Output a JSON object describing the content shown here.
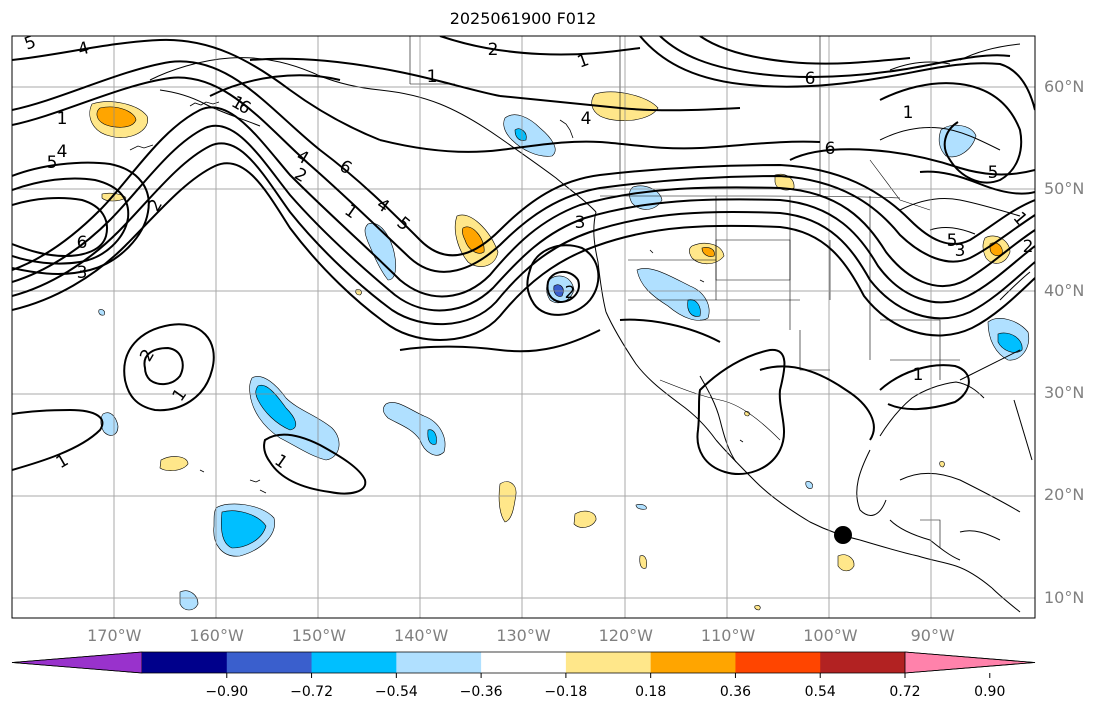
{
  "title": "2025061900 F012",
  "map": {
    "lat_ticks": [
      {
        "label": "60°N",
        "lat": 60
      },
      {
        "label": "50°N",
        "lat": 50
      },
      {
        "label": "40°N",
        "lat": 40
      },
      {
        "label": "30°N",
        "lat": 30
      },
      {
        "label": "20°N",
        "lat": 20
      },
      {
        "label": "10°N",
        "lat": 10
      }
    ],
    "lon_ticks": [
      {
        "label": "170°W",
        "lon": -170
      },
      {
        "label": "160°W",
        "lon": -160
      },
      {
        "label": "150°W",
        "lon": -150
      },
      {
        "label": "140°W",
        "lon": -140
      },
      {
        "label": "130°W",
        "lon": -130
      },
      {
        "label": "120°W",
        "lon": -120
      },
      {
        "label": "110°W",
        "lon": -110
      },
      {
        "label": "100°W",
        "lon": -100
      },
      {
        "label": "90°W",
        "lon": -90
      }
    ],
    "marker": {
      "name": "black dot",
      "lon": -98.5,
      "lat": 16.5
    },
    "contour_labels": [
      "5",
      "4",
      "2",
      "1",
      "6",
      "1",
      "4",
      "1",
      "5",
      "4",
      "6",
      "4",
      "6",
      "3",
      "2",
      "1",
      "2",
      "3",
      "1",
      "1",
      "5",
      "1",
      "2",
      "2",
      "6",
      "1",
      "4",
      "5",
      "1",
      "1",
      "1",
      "2",
      "3",
      "5",
      "6"
    ]
  },
  "colorbar": {
    "colors": [
      "#9932cc",
      "#00008b",
      "#3a5fcd",
      "#00bfff",
      "#b0e0ff",
      "#ffffff",
      "#ffe78a",
      "#ffa500",
      "#ff4500",
      "#b22222",
      "#ff82ab"
    ],
    "labels": [
      "−0.90",
      "−0.72",
      "−0.54",
      "−0.36",
      "−0.18",
      "0.18",
      "0.36",
      "0.54",
      "0.72",
      "0.90"
    ],
    "values": [
      -0.9,
      -0.72,
      -0.54,
      -0.36,
      -0.18,
      0.18,
      0.36,
      0.54,
      0.72,
      0.9
    ]
  }
}
